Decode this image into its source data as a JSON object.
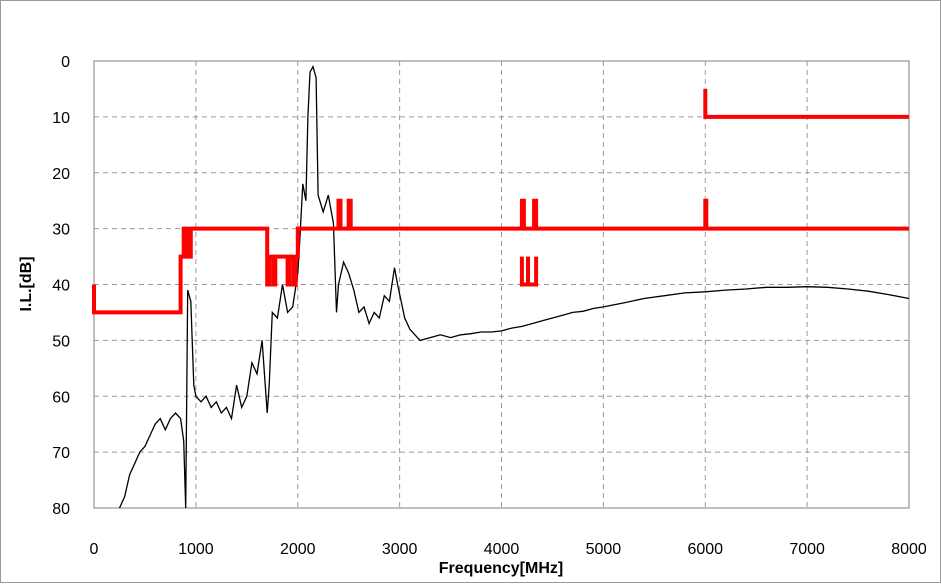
{
  "chart_data": {
    "type": "line",
    "title": "",
    "xlabel": "Frequency[MHz]",
    "ylabel": "I.L.[dB]",
    "xlim": [
      0,
      8000
    ],
    "ylim": [
      80,
      0
    ],
    "y_inverted": true,
    "grid": true,
    "grid_style": "dashed",
    "legend": "none",
    "x_ticks": [
      "0",
      "1000",
      "2000",
      "3000",
      "4000",
      "5000",
      "6000",
      "7000",
      "8000"
    ],
    "y_ticks": [
      "0",
      "10",
      "20",
      "30",
      "40",
      "50",
      "60",
      "70",
      "80"
    ],
    "series": [
      {
        "color": "#000000",
        "x": [
          250,
          300,
          350,
          400,
          450,
          500,
          550,
          600,
          650,
          700,
          750,
          800,
          850,
          880,
          900,
          920,
          950,
          980,
          1000,
          1050,
          1100,
          1150,
          1200,
          1250,
          1300,
          1350,
          1400,
          1450,
          1500,
          1550,
          1600,
          1650,
          1700,
          1720,
          1750,
          1800,
          1850,
          1900,
          1950,
          2000,
          2020,
          2050,
          2080,
          2100,
          2120,
          2150,
          2180,
          2200,
          2250,
          2300,
          2350,
          2380,
          2400,
          2450,
          2500,
          2550,
          2600,
          2650,
          2700,
          2750,
          2800,
          2850,
          2900,
          2950,
          2980,
          3050,
          3100,
          3150,
          3200,
          3300,
          3400,
          3500,
          3600,
          3700,
          3800,
          3900,
          4000,
          4100,
          4200,
          4300,
          4400,
          4500,
          4600,
          4700,
          4800,
          4900,
          5000,
          5200,
          5400,
          5600,
          5800,
          6000,
          6200,
          6400,
          6600,
          6800,
          7000,
          7200,
          7400,
          7600,
          7800,
          8000
        ],
        "values": [
          80,
          78,
          74,
          72,
          70,
          69,
          67,
          65,
          64,
          66,
          64,
          63,
          64,
          68,
          80,
          41,
          43,
          58,
          60,
          61,
          60,
          62,
          61,
          63,
          62,
          64,
          58,
          62,
          60,
          54,
          56,
          50,
          63,
          58,
          45,
          46,
          40,
          45,
          44,
          38,
          32,
          22,
          25,
          10,
          2,
          1,
          3,
          24,
          27,
          24,
          29,
          45,
          40,
          36,
          38,
          41,
          45,
          44,
          47,
          45,
          46,
          42,
          43,
          37,
          40,
          46,
          48,
          49,
          50,
          49.5,
          49,
          49.5,
          49,
          48.8,
          48.5,
          48.5,
          48.3,
          47.8,
          47.5,
          47,
          46.5,
          46,
          45.5,
          45,
          44.8,
          44.3,
          44,
          43.3,
          42.5,
          42,
          41.5,
          41.3,
          41,
          40.8,
          40.5,
          40.5,
          40.4,
          40.5,
          40.8,
          41.2,
          41.8,
          42.5
        ]
      },
      {
        "color": "#ff0000",
        "x": [
          0,
          0,
          850,
          850,
          880,
          880,
          920,
          920,
          950,
          950,
          1700,
          1700,
          1720,
          1720,
          1760,
          1760,
          1780,
          1780,
          1900,
          1900,
          1920,
          1920,
          1960,
          1960,
          1980,
          1980,
          2000,
          2000,
          2400,
          2400,
          2420,
          2420,
          2500,
          2500,
          2520,
          2520,
          4200,
          4200,
          4220,
          4220,
          4320,
          4320,
          4340,
          4340,
          6000,
          6000,
          6010,
          6010,
          8000
        ],
        "values": [
          40,
          45,
          45,
          35,
          35,
          30,
          30,
          35,
          35,
          30,
          30,
          40,
          40,
          35,
          35,
          40,
          40,
          35,
          35,
          40,
          40,
          35,
          35,
          40,
          40,
          35,
          35,
          30,
          30,
          25,
          25,
          30,
          30,
          25,
          25,
          30,
          30,
          25,
          25,
          30,
          30,
          25,
          25,
          30,
          30,
          25,
          25,
          30,
          30
        ]
      }
    ],
    "red_extra_segments": [
      {
        "x": [
          4200,
          4200,
          4340,
          4340
        ],
        "values": [
          35,
          40,
          40,
          35
        ]
      },
      {
        "x": [
          4260,
          4260
        ],
        "values": [
          35,
          40
        ]
      },
      {
        "x": [
          6000,
          6000,
          8000
        ],
        "values": [
          5,
          10,
          10
        ]
      }
    ]
  }
}
